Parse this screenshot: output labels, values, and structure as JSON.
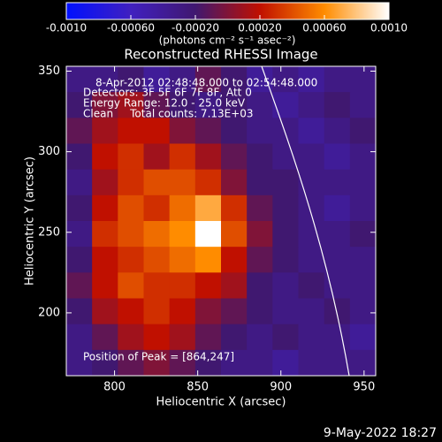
{
  "chart_data": {
    "type": "heatmap",
    "title": "Reconstructed RHESSI Image",
    "xlabel": "Heliocentric X (arcsec)",
    "ylabel": "Heliocentric Y (arcsec)",
    "colorbar_label": "(photons cm⁻² s⁻¹ asec⁻²)",
    "annotations": [
      "8-Apr-2012 02:48:48.000 to 02:54:48.000",
      "Detectors: 3F 5F 6F 7F 8F, Att 0",
      "Energy Range: 12.0 - 25.0 keV",
      "Clean     Total counts: 7.13E+03"
    ],
    "peak_label": "Position of Peak = [864,247]",
    "footer": "9-May-2022 18:27",
    "xlim": [
      771,
      957
    ],
    "ylim": [
      161,
      353
    ],
    "xticks": [
      800,
      850,
      900,
      950
    ],
    "yticks": [
      200,
      250,
      300,
      350
    ],
    "zlim": [
      -0.001,
      0.001
    ],
    "zticks": [
      {
        "value": -0.001,
        "label": "-0.0010"
      },
      {
        "value": -0.0006,
        "label": "-0.00060"
      },
      {
        "value": -0.0002,
        "label": "-0.00020"
      },
      {
        "value": 0.0002,
        "label": "0.00020"
      },
      {
        "value": 0.0006,
        "label": "0.00060"
      },
      {
        "value": 0.001,
        "label": "0.0010"
      }
    ],
    "colormap": [
      "#0010ff",
      "#4020c0",
      "#401870",
      "#c01000",
      "#ff8c00",
      "#ffffff"
    ],
    "z": [
      [
        -0.0003,
        -0.0003,
        -0.0002,
        -0.0004,
        -0.0003,
        -0.0001,
        -0.0002,
        -0.0004,
        -0.0003,
        -0.0004,
        -0.0003,
        -0.0003
      ],
      [
        -0.0002,
        0,
        0.0001,
        -0.0001,
        -0.0002,
        -0.0003,
        -0.0002,
        -0.0003,
        -0.0004,
        -0.0003,
        -0.0002,
        -0.0003
      ],
      [
        -0.0001,
        0.0001,
        0.0002,
        0.0002,
        0,
        -0.0001,
        -0.0002,
        -0.0003,
        -0.0003,
        -0.0004,
        -0.0003,
        -0.0002
      ],
      [
        -0.0002,
        0.0002,
        0.0003,
        0.0001,
        0.0003,
        0.0001,
        -0.0001,
        -0.0002,
        -0.0003,
        -0.0003,
        -0.0004,
        -0.0003
      ],
      [
        -0.0003,
        0.0001,
        0.0003,
        0.0004,
        0.0004,
        0.0003,
        0,
        -0.0002,
        -0.0002,
        -0.0003,
        -0.0003,
        -0.0003
      ],
      [
        -0.0002,
        0.0002,
        0.0004,
        0.0003,
        0.0005,
        0.0007,
        0.0003,
        -0.0001,
        -0.0002,
        -0.0003,
        -0.0004,
        -0.0003
      ],
      [
        -0.0003,
        0.0003,
        0.0004,
        0.0005,
        0.0006,
        0.001,
        0.0004,
        0,
        -0.0002,
        -0.0003,
        -0.0003,
        -0.0002
      ],
      [
        -0.0002,
        0.0002,
        0.0003,
        0.0004,
        0.0005,
        0.0006,
        0.0002,
        -0.0001,
        -0.0002,
        -0.0003,
        -0.0003,
        -0.0003
      ],
      [
        -0.0001,
        0.0002,
        0.0004,
        0.0003,
        0.0003,
        0.0002,
        0.0001,
        -0.0002,
        -0.0003,
        -0.0002,
        -0.0003,
        -0.0003
      ],
      [
        -0.0002,
        0.0001,
        0.0002,
        0.0003,
        0.0002,
        0,
        -0.0001,
        -0.0002,
        -0.0003,
        -0.0003,
        -0.0002,
        -0.0003
      ],
      [
        -0.0003,
        -0.0001,
        0.0001,
        0.0002,
        0.0001,
        -0.0001,
        -0.0002,
        -0.0003,
        -0.0002,
        -0.0003,
        -0.0003,
        -0.0004
      ],
      [
        -0.0003,
        -0.0002,
        -0.0001,
        0,
        -0.0001,
        -0.0002,
        -0.0003,
        -0.0003,
        -0.0004,
        -0.0003,
        -0.0003,
        -0.0003
      ]
    ]
  }
}
